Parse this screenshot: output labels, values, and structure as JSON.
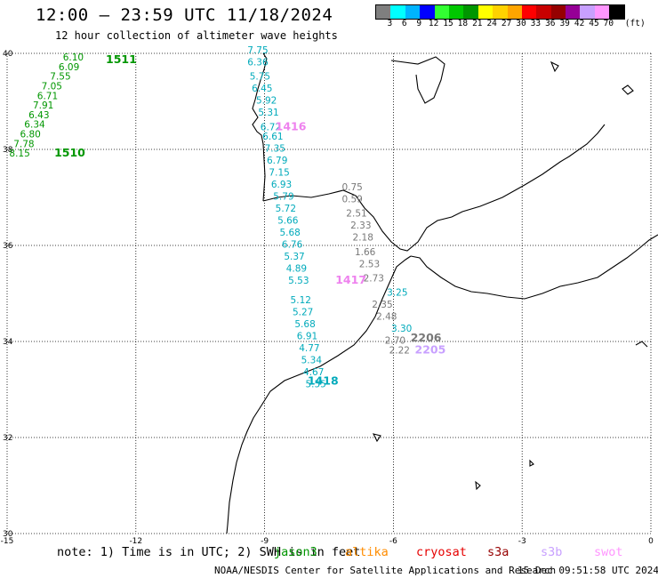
{
  "header": {
    "title": "12:00 – 23:59 UTC 11/18/2024",
    "subtitle": "12 hour collection of altimeter wave heights"
  },
  "colorbar": {
    "unit": "(ft)",
    "colors": [
      "#7f7f7f",
      "#00ffff",
      "#00b4ff",
      "#0000ff",
      "#32ff32",
      "#00c800",
      "#009600",
      "#ffff00",
      "#ffd200",
      "#ffa500",
      "#ff0000",
      "#c80000",
      "#960000",
      "#960096",
      "#c8a0ff",
      "#ff96ff",
      "#000000"
    ],
    "ticks": [
      "3",
      "6",
      "9",
      "12",
      "15",
      "18",
      "21",
      "24",
      "27",
      "30",
      "33",
      "36",
      "39",
      "42",
      "45",
      "70"
    ]
  },
  "chart_data": {
    "type": "scatter",
    "xlim": [
      -15,
      0
    ],
    "ylim": [
      30,
      40
    ],
    "x_ticks": [
      "-15",
      "-12",
      "-9",
      "-6",
      "-3",
      "0"
    ],
    "y_ticks": [
      "30",
      "32",
      "34",
      "36",
      "38",
      "40"
    ],
    "grid": true,
    "satellite_colors": {
      "jason3": "#00aabb",
      "altika": "#787878",
      "s3b": "#ee82ee",
      "cryosat": "#c8a0ff",
      "s3a": "#009600"
    },
    "tracks": [
      {
        "satellite": "s3a",
        "label": "1511",
        "label_pos": [
          -12.7,
          39.8
        ],
        "points": [
          {
            "x": -13.7,
            "y": 39.85,
            "v": "6.10"
          },
          {
            "x": -13.8,
            "y": 39.65,
            "v": "6.09"
          },
          {
            "x": -14.0,
            "y": 39.45,
            "v": "7.55"
          },
          {
            "x": -14.2,
            "y": 39.25,
            "v": "7.05"
          },
          {
            "x": -14.3,
            "y": 39.05,
            "v": "6.71"
          },
          {
            "x": -14.4,
            "y": 38.85,
            "v": "7.91"
          },
          {
            "x": -14.5,
            "y": 38.65,
            "v": "6.43"
          },
          {
            "x": -14.6,
            "y": 38.45,
            "v": "6.34"
          },
          {
            "x": -14.7,
            "y": 38.25,
            "v": "6.80"
          },
          {
            "x": -14.85,
            "y": 38.05,
            "v": "7.78"
          },
          {
            "x": -14.95,
            "y": 37.85,
            "v": "8.15"
          }
        ]
      },
      {
        "satellite": "s3a",
        "label": "1510",
        "label_pos": [
          -13.9,
          37.85
        ],
        "points": []
      },
      {
        "satellite": "jason3",
        "label": "1418",
        "label_pos": [
          -8.0,
          33.1
        ],
        "points": [
          {
            "x": -9.4,
            "y": 40.0,
            "v": "7.75"
          },
          {
            "x": -9.4,
            "y": 39.75,
            "v": "6.36"
          },
          {
            "x": -9.35,
            "y": 39.45,
            "v": "5.75"
          },
          {
            "x": -9.3,
            "y": 39.2,
            "v": "6.45"
          },
          {
            "x": -9.2,
            "y": 38.95,
            "v": "5.92"
          },
          {
            "x": -9.15,
            "y": 38.7,
            "v": "5.31"
          },
          {
            "x": -9.1,
            "y": 38.4,
            "v": "6.72"
          },
          {
            "x": -9.05,
            "y": 38.2,
            "v": "6.61"
          },
          {
            "x": -9.0,
            "y": 37.95,
            "v": "7.35"
          },
          {
            "x": -8.95,
            "y": 37.7,
            "v": "6.79"
          },
          {
            "x": -8.9,
            "y": 37.45,
            "v": "7.15"
          },
          {
            "x": -8.85,
            "y": 37.2,
            "v": "6.93"
          },
          {
            "x": -8.8,
            "y": 36.95,
            "v": "5.79"
          },
          {
            "x": -8.75,
            "y": 36.7,
            "v": "5.72"
          },
          {
            "x": -8.7,
            "y": 36.45,
            "v": "5.66"
          },
          {
            "x": -8.65,
            "y": 36.2,
            "v": "5.68"
          },
          {
            "x": -8.6,
            "y": 35.95,
            "v": "6.76"
          },
          {
            "x": -8.55,
            "y": 35.7,
            "v": "5.37"
          },
          {
            "x": -8.5,
            "y": 35.45,
            "v": "4.89"
          },
          {
            "x": -8.45,
            "y": 35.2,
            "v": "5.53"
          },
          {
            "x": -8.4,
            "y": 34.8,
            "v": "5.12"
          },
          {
            "x": -8.35,
            "y": 34.55,
            "v": "5.27"
          },
          {
            "x": -8.3,
            "y": 34.3,
            "v": "5.68"
          },
          {
            "x": -8.25,
            "y": 34.05,
            "v": "6.91"
          },
          {
            "x": -8.2,
            "y": 33.8,
            "v": "4.77"
          },
          {
            "x": -8.15,
            "y": 33.55,
            "v": "5.34"
          },
          {
            "x": -8.1,
            "y": 33.3,
            "v": "4.67"
          },
          {
            "x": -8.05,
            "y": 33.05,
            "v": "5.55"
          }
        ]
      },
      {
        "satellite": "s3b",
        "label": "1417",
        "label_pos": [
          -7.35,
          35.2
        ],
        "points": []
      },
      {
        "satellite": "s3b",
        "label": "1416",
        "label_pos": [
          -8.75,
          38.4
        ],
        "points": []
      },
      {
        "satellite": "jason3",
        "label": "",
        "label_pos": [
          0,
          0
        ],
        "points": [
          {
            "x": -6.15,
            "y": 34.95,
            "v": "3.25"
          },
          {
            "x": -6.05,
            "y": 34.2,
            "v": "3.30"
          }
        ]
      },
      {
        "satellite": "altika",
        "label": "2206",
        "label_pos": [
          -5.6,
          34.0
        ],
        "points": [
          {
            "x": -7.2,
            "y": 37.15,
            "v": "0.75"
          },
          {
            "x": -7.2,
            "y": 36.9,
            "v": "0.59"
          },
          {
            "x": -7.1,
            "y": 36.6,
            "v": "2.51"
          },
          {
            "x": -7.0,
            "y": 36.35,
            "v": "2.33"
          },
          {
            "x": -6.95,
            "y": 36.1,
            "v": "2.18"
          },
          {
            "x": -6.9,
            "y": 35.8,
            "v": "1.66"
          },
          {
            "x": -6.8,
            "y": 35.55,
            "v": "2.53"
          },
          {
            "x": -6.7,
            "y": 35.25,
            "v": "2.73"
          },
          {
            "x": -6.5,
            "y": 34.7,
            "v": "2.35"
          },
          {
            "x": -6.4,
            "y": 34.45,
            "v": "2.48"
          },
          {
            "x": -6.2,
            "y": 33.95,
            "v": "2.70"
          },
          {
            "x": -6.1,
            "y": 33.75,
            "v": "2.22"
          }
        ]
      },
      {
        "satellite": "cryosat",
        "label": "2205",
        "label_pos": [
          -5.5,
          33.75
        ],
        "points": []
      }
    ]
  },
  "footer": {
    "note": "note: 1) Time is in UTC; 2) SWH is in feet",
    "satellites": [
      {
        "name": "jason3",
        "color": "#009600"
      },
      {
        "name": "altika",
        "color": "#ff8c00"
      },
      {
        "name": "cryosat",
        "color": "#e60000"
      },
      {
        "name": "s3a",
        "color": "#960000"
      },
      {
        "name": "s3b",
        "color": "#c8a0ff"
      },
      {
        "name": "swot",
        "color": "#ff96ff"
      }
    ],
    "credit": "NOAA/NESDIS Center for Satellite Applications and Research",
    "timestamp": "15 Dec 09:51:58 UTC 2024"
  }
}
